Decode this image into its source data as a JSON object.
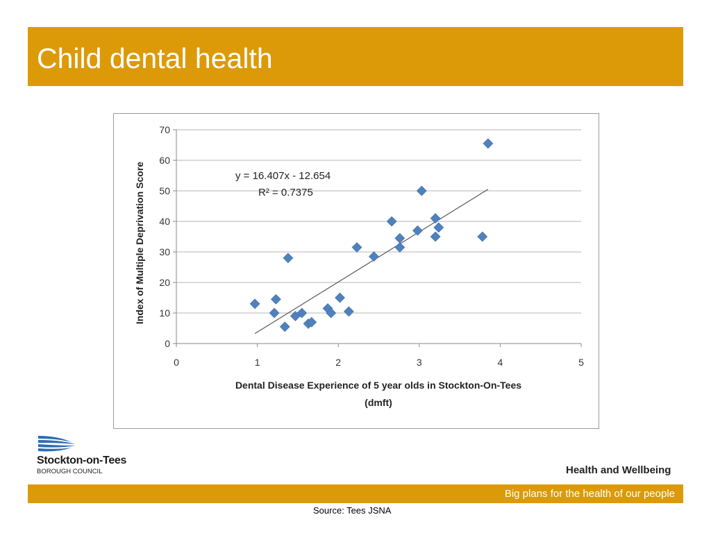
{
  "slide": {
    "title": "Child dental health",
    "source": "Source: Tees JSNA"
  },
  "branding": {
    "logo_name": "Stockton-on-Tees",
    "logo_subtitle": "BOROUGH COUNCIL",
    "section_title": "Health and Wellbeing",
    "tagline": "Big plans for the health of our people"
  },
  "colors": {
    "accent": "#dc9a08",
    "marker": "#4f81bd",
    "logo_blue": "#2e6db4"
  },
  "chart_data": {
    "type": "scatter",
    "xlabel_line1": "Dental Disease Experience of 5 year olds in Stockton-On-Tees",
    "xlabel_line2": "(dmft)",
    "ylabel": "Index of Multiple Deprivation Score",
    "xlim": [
      0,
      5
    ],
    "ylim": [
      0,
      70
    ],
    "x_ticks": [
      0,
      1,
      2,
      3,
      4,
      5
    ],
    "y_ticks": [
      0,
      10,
      20,
      30,
      40,
      50,
      60,
      70
    ],
    "grid": "horizontal",
    "series": [
      {
        "points": [
          [
            0.97,
            13.0
          ],
          [
            1.21,
            10.0
          ],
          [
            1.23,
            14.5
          ],
          [
            1.34,
            5.5
          ],
          [
            1.38,
            28.0
          ],
          [
            1.47,
            9.0
          ],
          [
            1.55,
            10.0
          ],
          [
            1.63,
            6.5
          ],
          [
            1.67,
            7.0
          ],
          [
            1.87,
            11.5
          ],
          [
            1.91,
            10.0
          ],
          [
            2.02,
            15.0
          ],
          [
            2.13,
            10.5
          ],
          [
            2.23,
            31.5
          ],
          [
            2.44,
            28.5
          ],
          [
            2.66,
            40.0
          ],
          [
            2.76,
            34.5
          ],
          [
            2.76,
            31.5
          ],
          [
            2.98,
            37.0
          ],
          [
            3.03,
            50.0
          ],
          [
            3.2,
            41.0
          ],
          [
            3.2,
            35.0
          ],
          [
            3.24,
            38.0
          ],
          [
            3.78,
            35.0
          ],
          [
            3.85,
            65.5
          ]
        ]
      }
    ],
    "trendline": {
      "x_range": [
        0.97,
        3.85
      ],
      "equation": "y = 16.407x - 12.654",
      "r_squared": "R² = 0.7375"
    }
  }
}
